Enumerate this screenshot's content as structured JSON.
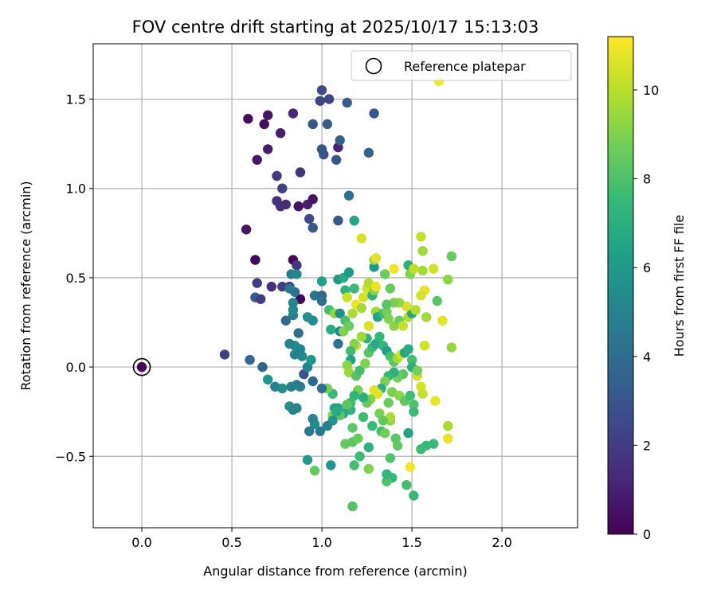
{
  "chart_data": {
    "type": "scatter",
    "title": "FOV centre drift starting at 2025/10/17 15:13:03",
    "xlabel": "Angular distance from reference (arcmin)",
    "ylabel": "Rotation from reference (arcmin)",
    "xlim": [
      -0.27,
      2.42
    ],
    "ylim": [
      -0.9,
      1.81
    ],
    "xticks": [
      0.0,
      0.5,
      1.0,
      1.5,
      2.0
    ],
    "xtick_labels": [
      "0.0",
      "0.5",
      "1.0",
      "1.5",
      "2.0"
    ],
    "yticks": [
      -0.5,
      0.0,
      0.5,
      1.0,
      1.5
    ],
    "ytick_labels": [
      "−0.5",
      "0.0",
      "0.5",
      "1.0",
      "1.5"
    ],
    "grid": true,
    "legend": {
      "position": "top-right",
      "entries": [
        "Reference platepar"
      ]
    },
    "reference_point": {
      "x": 0.0,
      "y": 0.0,
      "label": "Reference platepar"
    },
    "colorbar": {
      "label": "Hours from first FF file",
      "range": [
        0,
        11.2
      ],
      "ticks": [
        0,
        2,
        4,
        6,
        8,
        10
      ],
      "tick_labels": [
        "0",
        "2",
        "4",
        "6",
        "8",
        "10"
      ],
      "colormap": "viridis",
      "colormap_stops": [
        "#440154",
        "#482878",
        "#3e4989",
        "#31688e",
        "#26828e",
        "#1f9e89",
        "#35b779",
        "#6ece58",
        "#b5de2b",
        "#fde725"
      ]
    },
    "columns": [
      "x",
      "y",
      "hours"
    ],
    "points": [
      [
        0.0,
        0.0,
        0.0
      ],
      [
        0.59,
        1.39,
        0.3
      ],
      [
        0.64,
        1.16,
        0.6
      ],
      [
        0.68,
        1.36,
        0.4
      ],
      [
        0.7,
        1.41,
        0.6
      ],
      [
        0.7,
        1.22,
        0.8
      ],
      [
        0.77,
        1.31,
        0.9
      ],
      [
        0.84,
        1.42,
        1.2
      ],
      [
        0.88,
        1.09,
        1.7
      ],
      [
        0.75,
        1.07,
        1.9
      ],
      [
        0.78,
        1.0,
        2.1
      ],
      [
        0.75,
        0.93,
        1.5
      ],
      [
        0.77,
        0.9,
        1.6
      ],
      [
        0.8,
        0.91,
        1.4
      ],
      [
        0.87,
        0.9,
        0.5
      ],
      [
        0.92,
        0.91,
        1.0
      ],
      [
        0.95,
        0.94,
        0.6
      ],
      [
        0.93,
        0.83,
        2.4
      ],
      [
        0.95,
        0.78,
        3.2
      ],
      [
        0.58,
        0.77,
        0.7
      ],
      [
        0.63,
        0.6,
        0.2
      ],
      [
        0.64,
        0.47,
        2.0
      ],
      [
        0.72,
        0.45,
        1.5
      ],
      [
        0.78,
        0.45,
        2.0
      ],
      [
        0.82,
        0.45,
        1.6
      ],
      [
        0.84,
        0.6,
        0.2
      ],
      [
        0.86,
        0.57,
        1.8
      ],
      [
        0.88,
        0.38,
        0.1
      ],
      [
        0.63,
        0.39,
        3.3
      ],
      [
        0.66,
        0.38,
        2.0
      ],
      [
        0.46,
        0.07,
        2.2
      ],
      [
        0.6,
        0.04,
        3.8
      ],
      [
        0.67,
        0.0,
        3.6
      ],
      [
        0.99,
        1.49,
        2.3
      ],
      [
        1.0,
        1.55,
        2.6
      ],
      [
        0.95,
        1.36,
        3.1
      ],
      [
        1.03,
        1.36,
        3.3
      ],
      [
        1.0,
        1.22,
        3.0
      ],
      [
        1.01,
        1.19,
        2.9
      ],
      [
        1.08,
        1.16,
        3.1
      ],
      [
        1.09,
        1.23,
        1.1
      ],
      [
        1.1,
        1.27,
        3.4
      ],
      [
        1.14,
        1.48,
        3.3
      ],
      [
        1.29,
        1.42,
        3.0
      ],
      [
        1.26,
        1.2,
        3.4
      ],
      [
        1.04,
        1.5,
        2.3
      ],
      [
        1.15,
        0.96,
        4.0
      ],
      [
        1.09,
        0.82,
        3.1
      ],
      [
        1.18,
        0.82,
        6.5
      ],
      [
        1.22,
        0.72,
        10.5
      ],
      [
        1.29,
        0.56,
        6.0
      ],
      [
        1.29,
        0.6,
        9.5
      ],
      [
        1.3,
        0.61,
        10.7
      ],
      [
        1.35,
        0.52,
        8.6
      ],
      [
        1.4,
        0.55,
        11.0
      ],
      [
        1.48,
        0.57,
        7.0
      ],
      [
        1.49,
        0.52,
        9.0
      ],
      [
        1.51,
        0.55,
        10.1
      ],
      [
        1.56,
        0.54,
        9.6
      ],
      [
        1.55,
        0.73,
        10.2
      ],
      [
        1.56,
        0.65,
        9.6
      ],
      [
        1.62,
        0.55,
        10.4
      ],
      [
        1.72,
        0.62,
        8.5
      ],
      [
        1.7,
        0.49,
        9.3
      ],
      [
        1.65,
        1.6,
        11.0
      ],
      [
        1.57,
        0.43,
        10.8
      ],
      [
        1.55,
        0.4,
        10.5
      ],
      [
        1.64,
        0.37,
        8.2
      ],
      [
        1.58,
        0.28,
        9.6
      ],
      [
        1.67,
        0.26,
        10.7
      ],
      [
        1.72,
        0.11,
        9.4
      ],
      [
        1.57,
        0.12,
        10.4
      ],
      [
        1.55,
        -0.11,
        10.5
      ],
      [
        1.56,
        -0.15,
        10.2
      ],
      [
        1.63,
        -0.19,
        10.8
      ],
      [
        1.51,
        -0.21,
        8.0
      ],
      [
        1.51,
        -0.25,
        7.6
      ],
      [
        1.7,
        -0.33,
        9.8
      ],
      [
        1.7,
        -0.4,
        10.9
      ],
      [
        1.62,
        -0.43,
        7.5
      ],
      [
        1.58,
        -0.44,
        7.5
      ],
      [
        1.55,
        -0.46,
        7.6
      ],
      [
        1.48,
        -0.37,
        6.5
      ],
      [
        1.49,
        -0.56,
        11.0
      ],
      [
        1.47,
        -0.66,
        7.8
      ],
      [
        1.51,
        -0.72,
        7.5
      ],
      [
        1.39,
        -0.62,
        7.5
      ],
      [
        1.36,
        -0.64,
        8.0
      ],
      [
        1.36,
        -0.6,
        7.3
      ],
      [
        1.38,
        -0.51,
        8.1
      ],
      [
        1.41,
        -0.4,
        8.2
      ],
      [
        1.42,
        -0.44,
        8.4
      ],
      [
        1.26,
        -0.57,
        9.0
      ],
      [
        1.21,
        -0.5,
        7.6
      ],
      [
        1.18,
        -0.55,
        7.8
      ],
      [
        1.17,
        -0.78,
        8.1
      ],
      [
        1.26,
        -0.45,
        7.1
      ],
      [
        1.33,
        -0.36,
        7.8
      ],
      [
        1.38,
        -0.3,
        9.2
      ],
      [
        1.38,
        -0.28,
        9.8
      ],
      [
        1.35,
        -0.37,
        8.7
      ],
      [
        1.28,
        -0.33,
        7.5
      ],
      [
        1.23,
        -0.28,
        7.7
      ],
      [
        1.17,
        -0.34,
        8.4
      ],
      [
        1.16,
        -0.24,
        7.3
      ],
      [
        1.13,
        -0.43,
        8.5
      ],
      [
        1.17,
        -0.42,
        8.3
      ],
      [
        1.09,
        -0.23,
        6.6
      ],
      [
        1.07,
        -0.23,
        6.4
      ],
      [
        1.06,
        -0.27,
        9.0
      ],
      [
        1.06,
        -0.15,
        7.5
      ],
      [
        1.03,
        -0.12,
        8.9
      ],
      [
        1.0,
        -0.12,
        4.0
      ],
      [
        0.95,
        -0.08,
        3.8
      ],
      [
        0.88,
        -0.11,
        5.0
      ],
      [
        0.86,
        -0.1,
        4.5
      ],
      [
        0.9,
        -0.04,
        3.0
      ],
      [
        0.92,
        0.0,
        5.1
      ],
      [
        0.94,
        0.04,
        5.9
      ],
      [
        0.89,
        0.06,
        5.2
      ],
      [
        0.88,
        0.1,
        5.0
      ],
      [
        0.85,
        0.12,
        5.3
      ],
      [
        0.82,
        0.13,
        5.0
      ],
      [
        0.85,
        0.07,
        4.9
      ],
      [
        0.87,
        0.19,
        4.1
      ],
      [
        0.8,
        0.26,
        3.8
      ],
      [
        0.84,
        0.29,
        4.8
      ],
      [
        0.84,
        0.32,
        5.3
      ],
      [
        0.84,
        0.36,
        5.1
      ],
      [
        0.85,
        0.42,
        4.3
      ],
      [
        0.82,
        0.44,
        4.5
      ],
      [
        0.83,
        0.52,
        4.8
      ],
      [
        0.86,
        0.52,
        5.2
      ],
      [
        0.92,
        0.28,
        5.6
      ],
      [
        0.95,
        0.26,
        5.5
      ],
      [
        0.96,
        0.4,
        4.3
      ],
      [
        1.0,
        0.4,
        3.6
      ],
      [
        1.0,
        0.37,
        4.1
      ],
      [
        1.0,
        0.48,
        6.3
      ],
      [
        1.09,
        0.49,
        5.9
      ],
      [
        1.12,
        0.5,
        6.8
      ],
      [
        1.13,
        0.43,
        7.2
      ],
      [
        1.15,
        0.53,
        6.1
      ],
      [
        1.04,
        0.32,
        7.8
      ],
      [
        1.05,
        0.21,
        6.8
      ],
      [
        1.09,
        0.13,
        4.1
      ],
      [
        1.1,
        0.2,
        5.3
      ],
      [
        1.07,
        0.3,
        9.3
      ],
      [
        1.1,
        0.3,
        5.5
      ],
      [
        1.13,
        0.26,
        7.9
      ],
      [
        1.12,
        0.2,
        9.0
      ],
      [
        1.15,
        0.23,
        8.6
      ],
      [
        1.14,
        0.39,
        10.3
      ],
      [
        1.18,
        0.44,
        7.6
      ],
      [
        1.17,
        0.3,
        9.8
      ],
      [
        1.19,
        0.35,
        10.9
      ],
      [
        1.22,
        0.33,
        9.6
      ],
      [
        1.23,
        0.39,
        10.5
      ],
      [
        1.25,
        0.44,
        10.4
      ],
      [
        1.26,
        0.47,
        9.9
      ],
      [
        1.28,
        0.4,
        7.2
      ],
      [
        1.29,
        0.43,
        9.2
      ],
      [
        1.3,
        0.45,
        10.9
      ],
      [
        1.3,
        0.31,
        9.5
      ],
      [
        1.31,
        0.28,
        6.4
      ],
      [
        1.34,
        0.3,
        7.7
      ],
      [
        1.36,
        0.31,
        8.8
      ],
      [
        1.37,
        0.27,
        9.0
      ],
      [
        1.4,
        0.23,
        9.2
      ],
      [
        1.43,
        0.26,
        8.6
      ],
      [
        1.45,
        0.23,
        10.2
      ],
      [
        1.48,
        0.28,
        9.9
      ],
      [
        1.5,
        0.3,
        6.5
      ],
      [
        1.52,
        0.32,
        9.9
      ],
      [
        1.47,
        0.34,
        10.6
      ],
      [
        1.43,
        0.36,
        9.4
      ],
      [
        1.4,
        0.36,
        8.9
      ],
      [
        1.36,
        0.35,
        8.2
      ],
      [
        1.38,
        0.44,
        8.5
      ],
      [
        1.26,
        0.23,
        10.6
      ],
      [
        1.25,
        0.16,
        7.3
      ],
      [
        1.22,
        0.17,
        9.6
      ],
      [
        1.19,
        0.12,
        10.4
      ],
      [
        1.18,
        0.13,
        9.1
      ],
      [
        1.16,
        0.09,
        7.7
      ],
      [
        1.16,
        0.04,
        6.5
      ],
      [
        1.14,
        0.01,
        9.2
      ],
      [
        1.15,
        -0.03,
        9.5
      ],
      [
        1.19,
        -0.05,
        8.2
      ],
      [
        1.21,
        -0.02,
        7.8
      ],
      [
        1.24,
        0.02,
        9.0
      ],
      [
        1.26,
        0.08,
        8.2
      ],
      [
        1.28,
        0.11,
        7.6
      ],
      [
        1.3,
        0.13,
        6.7
      ],
      [
        1.32,
        0.17,
        7.3
      ],
      [
        1.34,
        0.12,
        7.4
      ],
      [
        1.36,
        0.09,
        6.3
      ],
      [
        1.38,
        0.06,
        7.9
      ],
      [
        1.4,
        0.03,
        8.3
      ],
      [
        1.42,
        0.05,
        9.7
      ],
      [
        1.44,
        0.07,
        10.4
      ],
      [
        1.46,
        0.08,
        6.5
      ],
      [
        1.48,
        0.1,
        6.8
      ],
      [
        1.5,
        0.04,
        7.8
      ],
      [
        1.5,
        0.0,
        7.0
      ],
      [
        1.45,
        -0.04,
        8.3
      ],
      [
        1.42,
        -0.06,
        8.7
      ],
      [
        1.4,
        -0.03,
        7.1
      ],
      [
        1.37,
        -0.05,
        7.5
      ],
      [
        1.35,
        -0.08,
        8.9
      ],
      [
        1.33,
        -0.12,
        7.0
      ],
      [
        1.31,
        -0.15,
        10.6
      ],
      [
        1.29,
        -0.13,
        10.7
      ],
      [
        1.27,
        -0.18,
        9.1
      ],
      [
        1.25,
        -0.2,
        8.5
      ],
      [
        1.23,
        -0.17,
        7.0
      ],
      [
        1.2,
        -0.13,
        8.8
      ],
      [
        1.18,
        -0.16,
        7.2
      ],
      [
        1.16,
        -0.2,
        7.6
      ],
      [
        1.14,
        -0.21,
        8.3
      ],
      [
        1.12,
        -0.26,
        6.7
      ],
      [
        1.1,
        -0.27,
        8.2
      ],
      [
        1.08,
        -0.25,
        6.8
      ],
      [
        1.06,
        -0.3,
        5.8
      ],
      [
        1.03,
        -0.33,
        5.0
      ],
      [
        0.99,
        -0.36,
        4.5
      ],
      [
        0.96,
        -0.32,
        5.5
      ],
      [
        0.93,
        -0.36,
        4.5
      ],
      [
        0.95,
        -0.29,
        5.1
      ],
      [
        0.92,
        -0.52,
        6.0
      ],
      [
        0.96,
        -0.58,
        8.5
      ],
      [
        1.05,
        -0.55,
        5.8
      ],
      [
        0.82,
        -0.22,
        5.7
      ],
      [
        0.84,
        -0.24,
        5.0
      ],
      [
        0.86,
        -0.23,
        5.2
      ],
      [
        0.83,
        -0.11,
        4.8
      ],
      [
        0.78,
        -0.12,
        5.5
      ],
      [
        0.74,
        -0.11,
        5.0
      ],
      [
        0.7,
        -0.07,
        5.8
      ],
      [
        1.2,
        -0.4,
        8.6
      ],
      [
        1.32,
        -0.26,
        8.9
      ],
      [
        1.34,
        -0.3,
        8.4
      ],
      [
        1.37,
        -0.2,
        8.6
      ],
      [
        1.39,
        -0.14,
        8.9
      ],
      [
        1.43,
        -0.16,
        9.2
      ],
      [
        1.46,
        -0.19,
        8.4
      ],
      [
        1.49,
        -0.16,
        7.7
      ],
      [
        1.53,
        -0.05,
        10.4
      ],
      [
        1.53,
        -0.02,
        8.8
      ]
    ]
  }
}
